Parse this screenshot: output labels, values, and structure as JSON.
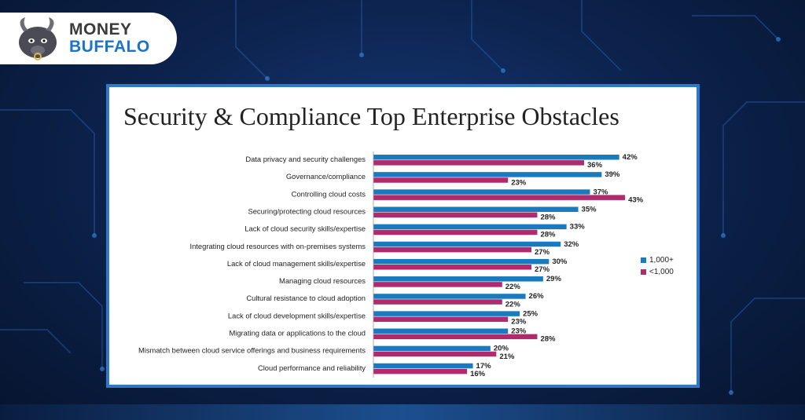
{
  "brand": {
    "line1": "MONEY",
    "line2": "BUFFALO"
  },
  "colors": {
    "series_1000_plus": "#1a7ac0",
    "series_under_1000": "#b02a6c",
    "frame": "#2f78c8"
  },
  "chart_data": {
    "type": "bar",
    "orientation": "horizontal",
    "title": "Security & Compliance Top Enterprise Obstacles",
    "categories": [
      "Data privacy and security challenges",
      "Governance/compliance",
      "Controlling cloud costs",
      "Securing/protecting cloud resources",
      "Lack of cloud security skills/expertise",
      "Integrating cloud resources with on-premises systems",
      "Lack of cloud management skills/expertise",
      "Managing cloud resources",
      "Cultural resistance to cloud adoption",
      "Lack of cloud development skills/expertise",
      "Migrating data or applications to the cloud",
      "Mismatch between cloud service offerings and business requirements",
      "Cloud performance and reliability"
    ],
    "series": [
      {
        "name": "1,000+",
        "color": "#1a7ac0",
        "values": [
          42,
          39,
          37,
          35,
          33,
          32,
          30,
          29,
          26,
          25,
          23,
          20,
          17
        ]
      },
      {
        "name": "<1,000",
        "color": "#b02a6c",
        "values": [
          36,
          23,
          43,
          28,
          28,
          27,
          27,
          22,
          22,
          23,
          28,
          21,
          16
        ]
      }
    ],
    "value_suffix": "%",
    "xlim": [
      0,
      45
    ],
    "legend_position": "right",
    "grid": false
  }
}
